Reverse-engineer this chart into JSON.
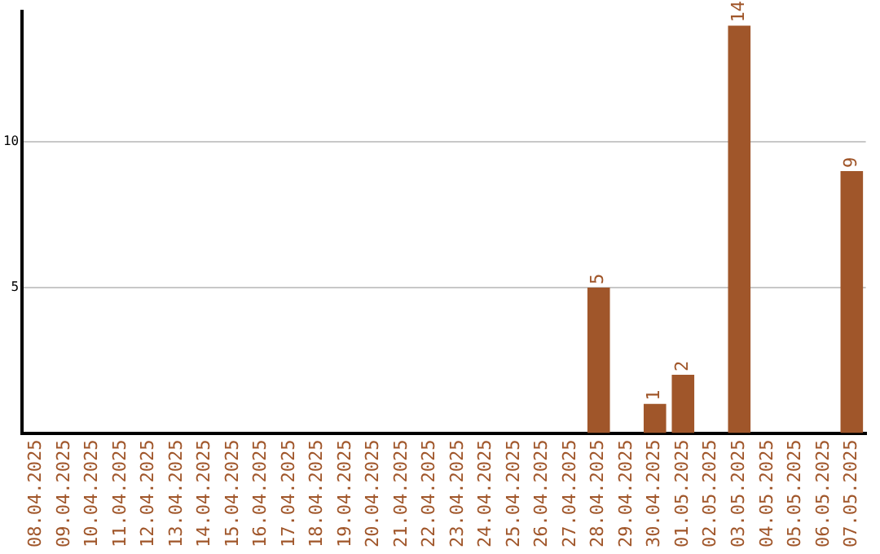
{
  "chart_data": {
    "type": "bar",
    "categories": [
      "08.04.2025",
      "09.04.2025",
      "10.04.2025",
      "11.04.2025",
      "12.04.2025",
      "13.04.2025",
      "14.04.2025",
      "15.04.2025",
      "16.04.2025",
      "17.04.2025",
      "18.04.2025",
      "19.04.2025",
      "20.04.2025",
      "21.04.2025",
      "22.04.2025",
      "23.04.2025",
      "24.04.2025",
      "25.04.2025",
      "26.04.2025",
      "27.04.2025",
      "28.04.2025",
      "29.04.2025",
      "30.04.2025",
      "01.05.2025",
      "02.05.2025",
      "03.05.2025",
      "04.05.2025",
      "05.05.2025",
      "06.05.2025",
      "07.05.2025"
    ],
    "values": [
      0,
      0,
      0,
      0,
      0,
      0,
      0,
      0,
      0,
      0,
      0,
      0,
      0,
      0,
      0,
      0,
      0,
      0,
      0,
      0,
      5,
      0,
      1,
      2,
      0,
      14,
      0,
      0,
      0,
      9
    ],
    "value_labels": [
      null,
      null,
      null,
      null,
      null,
      null,
      null,
      null,
      null,
      null,
      null,
      null,
      null,
      null,
      null,
      null,
      null,
      null,
      null,
      null,
      "5",
      null,
      "1",
      "2",
      null,
      "14",
      null,
      null,
      null,
      "9"
    ],
    "color": "#a0562a",
    "ylim": [
      0,
      14.5
    ],
    "yticks": [
      5,
      10
    ],
    "grid": "y",
    "legend": false
  }
}
